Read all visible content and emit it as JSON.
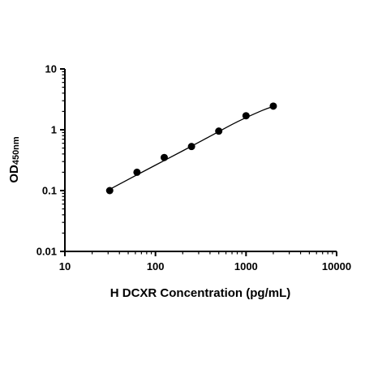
{
  "chart_data": {
    "type": "scatter",
    "title": "",
    "xlabel": "H DCXR Concentration (pg/mL)",
    "ylabel": "OD",
    "ylabel_subscript": "450nm",
    "x_scale": "log",
    "y_scale": "log",
    "xlim": [
      10,
      10000
    ],
    "ylim": [
      0.01,
      10
    ],
    "x_ticks": [
      "10",
      "100",
      "1000",
      "10000"
    ],
    "y_ticks": [
      "0.01",
      "0.1",
      "1",
      "10"
    ],
    "grid": false,
    "legend": false,
    "series": [
      {
        "x": [
          31.25,
          62.5,
          125,
          250,
          500,
          1000,
          2000
        ],
        "y": [
          0.1,
          0.2,
          0.35,
          0.53,
          0.95,
          1.7,
          2.45
        ]
      }
    ],
    "fit_curve": {
      "type": "line",
      "x": [
        31.25,
        50,
        100,
        200,
        400,
        800,
        1500,
        2000
      ],
      "y": [
        0.105,
        0.152,
        0.262,
        0.45,
        0.78,
        1.35,
        2.07,
        2.42
      ]
    },
    "colors": {
      "axis": "#000000",
      "marker": "#000000",
      "curve": "#000000"
    }
  }
}
